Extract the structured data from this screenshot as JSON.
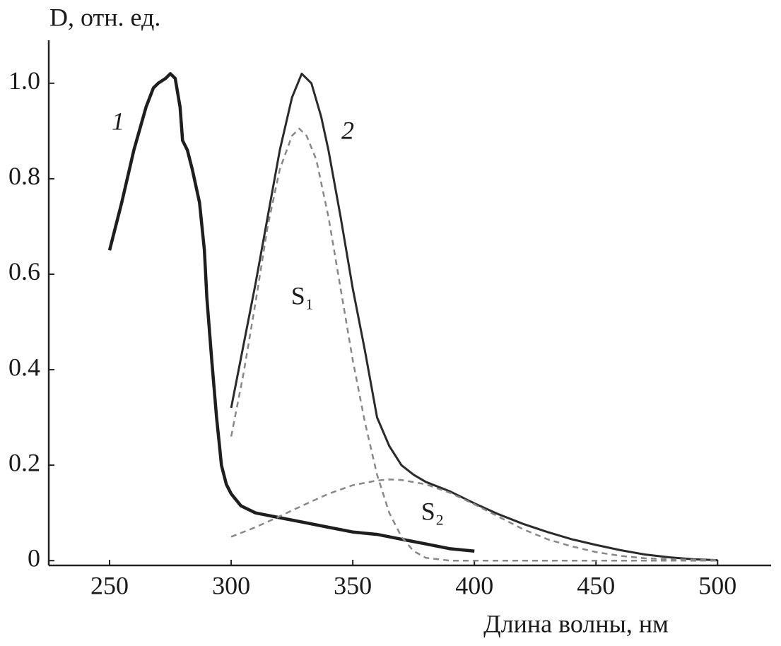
{
  "chart_data": {
    "type": "line",
    "y_label": "D, отн. ед.",
    "x_label": "Длина волны, нм",
    "xlim": [
      225,
      522
    ],
    "ylim": [
      -0.01,
      1.09
    ],
    "xticks": [
      250,
      300,
      350,
      400,
      450,
      500
    ],
    "yticks": [
      0,
      0.2,
      0.4,
      0.6,
      0.8,
      {
        "value": 1,
        "label": "1.0"
      }
    ],
    "series": [
      {
        "name": "1",
        "color": "#1e1e1e",
        "style": "solid",
        "x": [
          250,
          255,
          260,
          265,
          268,
          270,
          273,
          275,
          277,
          279,
          280,
          282,
          284,
          287,
          289,
          290,
          292,
          293,
          294,
          295,
          296,
          298,
          300,
          304,
          310,
          320,
          330,
          340,
          350,
          360,
          370,
          380,
          390,
          400
        ],
        "values": [
          0.65,
          0.75,
          0.86,
          0.95,
          0.99,
          1.0,
          1.01,
          1.02,
          1.01,
          0.95,
          0.88,
          0.86,
          0.82,
          0.75,
          0.65,
          0.55,
          0.42,
          0.36,
          0.3,
          0.25,
          0.2,
          0.16,
          0.14,
          0.115,
          0.1,
          0.09,
          0.08,
          0.07,
          0.06,
          0.055,
          0.045,
          0.035,
          0.025,
          0.02
        ]
      },
      {
        "name": "2",
        "color": "#2a2a2a",
        "style": "solid",
        "x": [
          300,
          305,
          310,
          315,
          320,
          325,
          329,
          333,
          337,
          340,
          345,
          350,
          355,
          360,
          365,
          370,
          375,
          380,
          390,
          400,
          410,
          420,
          430,
          440,
          450,
          460,
          470,
          480,
          490,
          500
        ],
        "values": [
          0.32,
          0.45,
          0.58,
          0.72,
          0.86,
          0.97,
          1.02,
          1.0,
          0.93,
          0.86,
          0.72,
          0.57,
          0.44,
          0.3,
          0.24,
          0.2,
          0.18,
          0.165,
          0.145,
          0.12,
          0.097,
          0.077,
          0.06,
          0.045,
          0.033,
          0.022,
          0.013,
          0.007,
          0.003,
          0.001
        ]
      },
      {
        "name": "S₁",
        "color": "#888888",
        "style": "dashed",
        "x": [
          300,
          305,
          310,
          315,
          320,
          325,
          328,
          331,
          335,
          340,
          345,
          350,
          355,
          360,
          365,
          370,
          375,
          380,
          390,
          400,
          450,
          500
        ],
        "values": [
          0.26,
          0.39,
          0.54,
          0.7,
          0.82,
          0.89,
          0.905,
          0.89,
          0.84,
          0.72,
          0.57,
          0.42,
          0.29,
          0.18,
          0.1,
          0.05,
          0.02,
          0.006,
          0,
          0,
          0,
          0
        ]
      },
      {
        "name": "S₂",
        "color": "#888888",
        "style": "dashed",
        "x": [
          300,
          310,
          320,
          330,
          340,
          350,
          360,
          365,
          370,
          380,
          390,
          400,
          410,
          420,
          430,
          440,
          450,
          460,
          470,
          480,
          490,
          500
        ],
        "values": [
          0.05,
          0.07,
          0.093,
          0.117,
          0.14,
          0.158,
          0.168,
          0.17,
          0.169,
          0.16,
          0.142,
          0.118,
          0.092,
          0.066,
          0.045,
          0.03,
          0.018,
          0.01,
          0.005,
          0.003,
          0.002,
          0.001
        ]
      }
    ]
  }
}
